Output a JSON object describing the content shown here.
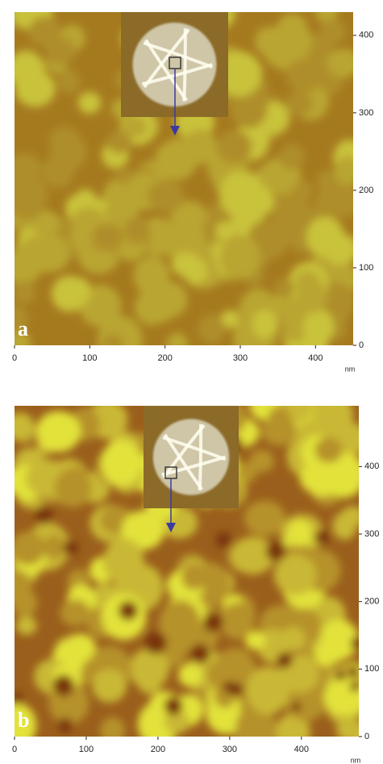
{
  "panels": [
    {
      "label": "a",
      "x_unit": "nm",
      "xlim": [
        0,
        450
      ],
      "ylim": [
        0,
        430
      ],
      "xticks": [
        0,
        100,
        200,
        300,
        400
      ],
      "yticks": [
        0,
        100,
        200,
        300,
        400
      ]
    },
    {
      "label": "b",
      "x_unit": "nm",
      "xlim": [
        0,
        480
      ],
      "ylim": [
        0,
        490
      ],
      "xticks": [
        0,
        100,
        200,
        300,
        400
      ],
      "yticks": [
        0,
        100,
        200,
        300,
        400
      ]
    }
  ]
}
